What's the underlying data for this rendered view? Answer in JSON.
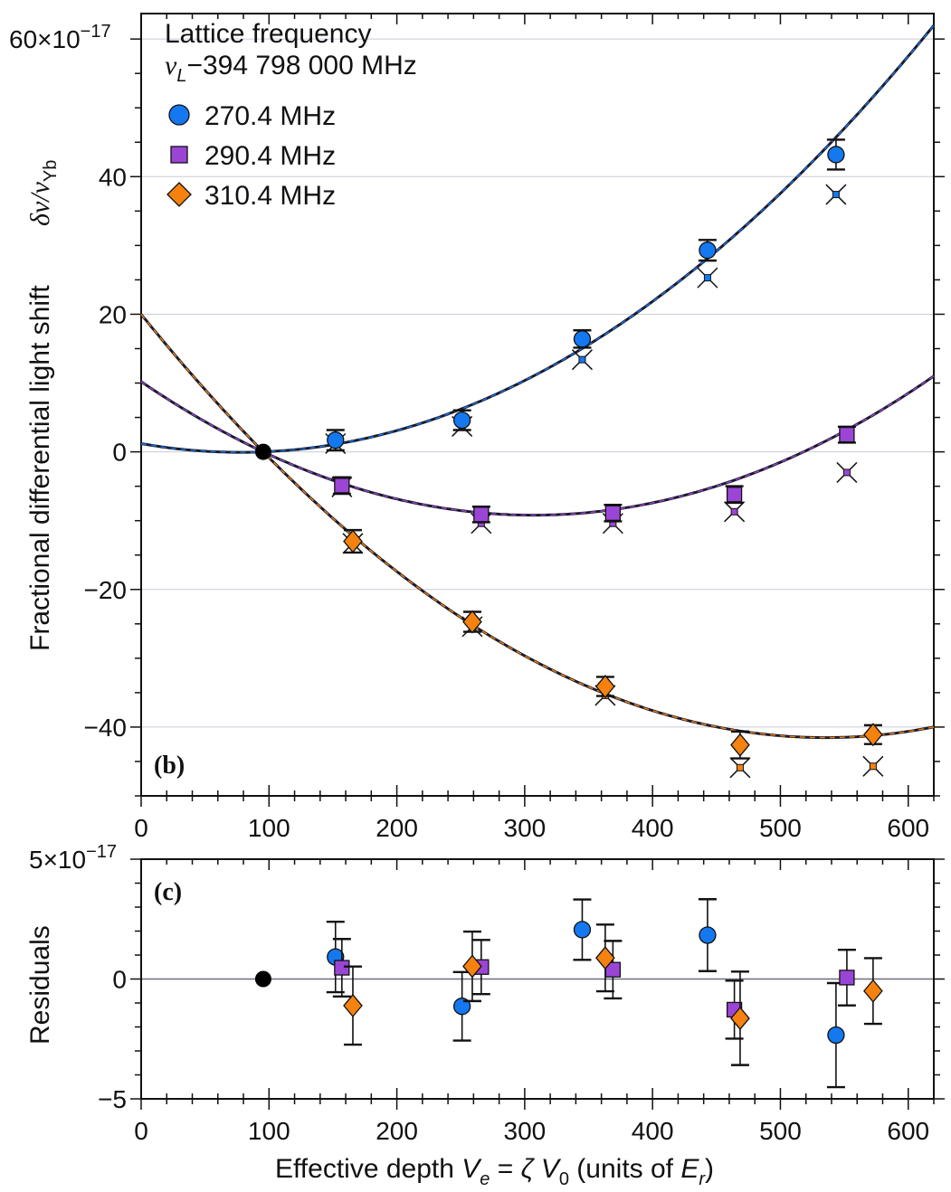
{
  "chart_data": [
    {
      "type": "scatter",
      "panel": "(b)",
      "xlim": [
        0,
        620
      ],
      "ylim": [
        -50,
        63.7
      ],
      "x_ticks": [
        0,
        100,
        200,
        300,
        400,
        500,
        600
      ],
      "x_tick_labels": [
        "0",
        "100",
        "200",
        "300",
        "400",
        "500",
        "600"
      ],
      "y_ticks": [
        -40,
        -20,
        0,
        20,
        40,
        60
      ],
      "y_tick_labels": [
        "−40",
        "−20",
        "0",
        "20",
        "40",
        "60"
      ],
      "y_multiplier": {
        "base": "×10",
        "exp": "−17"
      },
      "ylabel": "Fractional differential light shift",
      "ylabel_symbol": {
        "main": "δν/ν",
        "sub": "Yb"
      },
      "grid": "horizontal at major y ticks",
      "legend": {
        "placement": "top-left",
        "title": "Lattice frequency",
        "subtitle": {
          "symbol": "ν",
          "sub": "L",
          "rest": "−394 798 000 MHz"
        },
        "entries": [
          "270.4 MHz",
          "290.4 MHz",
          "310.4 MHz"
        ]
      },
      "reference_point": {
        "x": 95.5,
        "y": 0,
        "color": "#000000"
      },
      "series": [
        {
          "name": "270.4 MHz",
          "marker": "circle",
          "color": "#1478f0",
          "x": [
            152,
            251,
            345,
            443,
            543.5
          ],
          "y": [
            1.7,
            4.6,
            16.4,
            29.3,
            43.2
          ],
          "err": [
            1.47,
            1.43,
            1.26,
            1.5,
            2.17
          ],
          "uncorrected_y": [
            1.2,
            3.7,
            13.4,
            25.3,
            37.4
          ],
          "fit": {
            "x0": 95.5,
            "a": 0.0002109,
            "b": 0.00757
          }
        },
        {
          "name": "290.4 MHz",
          "marker": "square",
          "color": "#9b45d6",
          "x": [
            157,
            266,
            369,
            464,
            552
          ],
          "y": [
            -4.9,
            -9.1,
            -8.9,
            -6.2,
            2.5
          ],
          "err": [
            1.2,
            1.13,
            1.2,
            1.21,
            1.16
          ],
          "uncorrected_y": [
            -5.1,
            -10.4,
            -10.4,
            -8.7,
            -3.0
          ],
          "fit": {
            "x0": 95.5,
            "a": 0.0002061,
            "b": -0.0871
          }
        },
        {
          "name": "310.4 MHz",
          "marker": "diamond",
          "color": "#f5820f",
          "x": [
            165.6,
            259,
            363,
            468.5,
            572.5
          ],
          "y": [
            -13.0,
            -24.7,
            -34.1,
            -42.6,
            -41.1
          ],
          "err": [
            1.63,
            1.45,
            1.39,
            1.95,
            1.37
          ],
          "uncorrected_y": [
            -13.3,
            -25.4,
            -35.4,
            -45.9,
            -45.7
          ],
          "fit": {
            "x0": 95.5,
            "a": 0.0002148,
            "b": -0.1889
          }
        }
      ]
    },
    {
      "type": "scatter",
      "panel": "(c)",
      "xlim": [
        0,
        620
      ],
      "ylim": [
        -5,
        5
      ],
      "x_ticks": [
        0,
        100,
        200,
        300,
        400,
        500,
        600
      ],
      "x_tick_labels": [
        "0",
        "100",
        "200",
        "300",
        "400",
        "500",
        "600"
      ],
      "y_ticks": [
        -5,
        0,
        5
      ],
      "y_tick_labels": [
        "−5",
        "0",
        "5"
      ],
      "y_multiplier": {
        "base": "×10",
        "exp": "−17"
      },
      "ylabel": "Residuals",
      "xlabel_parts": [
        {
          "t": "Effective depth  "
        },
        {
          "t": "V",
          "i": true
        },
        {
          "t": "e",
          "sub": true,
          "i": true
        },
        {
          "t": " = "
        },
        {
          "t": "ζ V",
          "i": true
        },
        {
          "t": "0",
          "sub": true
        },
        {
          "t": "    (units of "
        },
        {
          "t": "E",
          "i": true
        },
        {
          "t": "r",
          "sub": true,
          "i": true
        },
        {
          "t": ")"
        }
      ],
      "reference_point": {
        "x": 95.5,
        "y": 0,
        "color": "#000000"
      },
      "series": [
        {
          "name": "270.4 MHz",
          "marker": "circle",
          "color": "#1478f0",
          "x": [
            152,
            251,
            345,
            443,
            543.5
          ],
          "y": [
            0.92,
            -1.14,
            2.06,
            1.83,
            -2.34
          ],
          "err": [
            1.47,
            1.43,
            1.26,
            1.5,
            2.17
          ]
        },
        {
          "name": "290.4 MHz",
          "marker": "square",
          "color": "#9b45d6",
          "x": [
            157,
            266,
            369,
            464,
            552
          ],
          "y": [
            0.47,
            0.5,
            0.39,
            -1.28,
            0.06
          ],
          "err": [
            1.2,
            1.13,
            1.2,
            1.21,
            1.16
          ]
        },
        {
          "name": "310.4 MHz",
          "marker": "diamond",
          "color": "#f5820f",
          "x": [
            165.6,
            259,
            363,
            468.5,
            572.5
          ],
          "y": [
            -1.11,
            0.53,
            0.88,
            -1.64,
            -0.5
          ],
          "err": [
            1.63,
            1.45,
            1.39,
            1.95,
            1.37
          ]
        }
      ]
    }
  ]
}
